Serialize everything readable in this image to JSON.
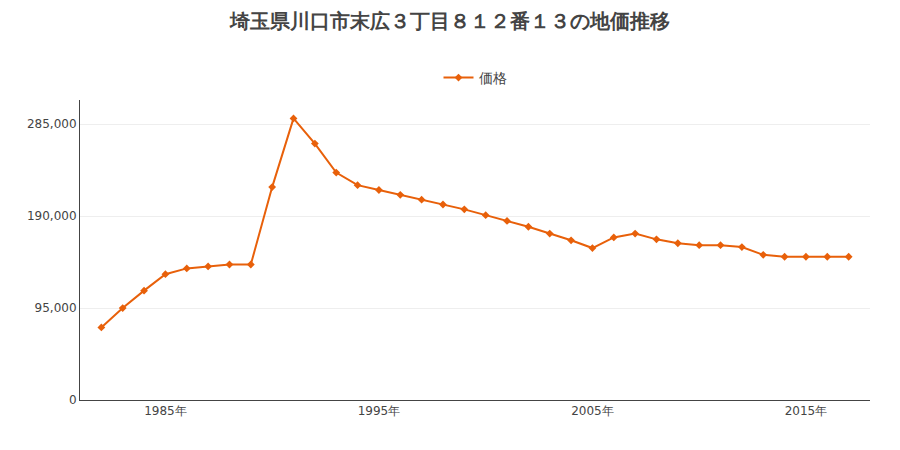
{
  "chart_data": {
    "type": "line",
    "title": "埼玉県川口市末広３丁目８１２番１３の地価推移",
    "x": [
      1982,
      1983,
      1984,
      1985,
      1986,
      1987,
      1988,
      1989,
      1990,
      1991,
      1992,
      1993,
      1994,
      1995,
      1996,
      1997,
      1998,
      1999,
      2000,
      2001,
      2002,
      2003,
      2004,
      2005,
      2006,
      2007,
      2008,
      2009,
      2010,
      2011,
      2012,
      2013,
      2014,
      2015,
      2016,
      2017
    ],
    "series": [
      {
        "name": "価格",
        "color": "#e8600a",
        "values": [
          75000,
          95000,
          113000,
          130000,
          136000,
          138000,
          140000,
          140000,
          220000,
          291000,
          265000,
          235000,
          222000,
          217000,
          212000,
          207000,
          202000,
          197000,
          191000,
          185000,
          179000,
          172000,
          165000,
          157000,
          168000,
          172000,
          166000,
          162000,
          160000,
          160000,
          158000,
          150000,
          148000,
          148000,
          148000,
          148000
        ]
      }
    ],
    "marker": "diamond",
    "xlim": [
      1981,
      2018
    ],
    "xticks": [
      {
        "value": 1985,
        "label": "1985年"
      },
      {
        "value": 1995,
        "label": "1995年"
      },
      {
        "value": 2005,
        "label": "2005年"
      },
      {
        "value": 2015,
        "label": "2015年"
      }
    ],
    "ylim": [
      0,
      310000
    ],
    "yticks": [
      0,
      {
        "value": 95000,
        "label": "95,000"
      },
      {
        "value": 190000,
        "label": "190,000"
      },
      {
        "value": 285000,
        "label": "285,000"
      }
    ],
    "grid": "y",
    "legend": "top"
  }
}
